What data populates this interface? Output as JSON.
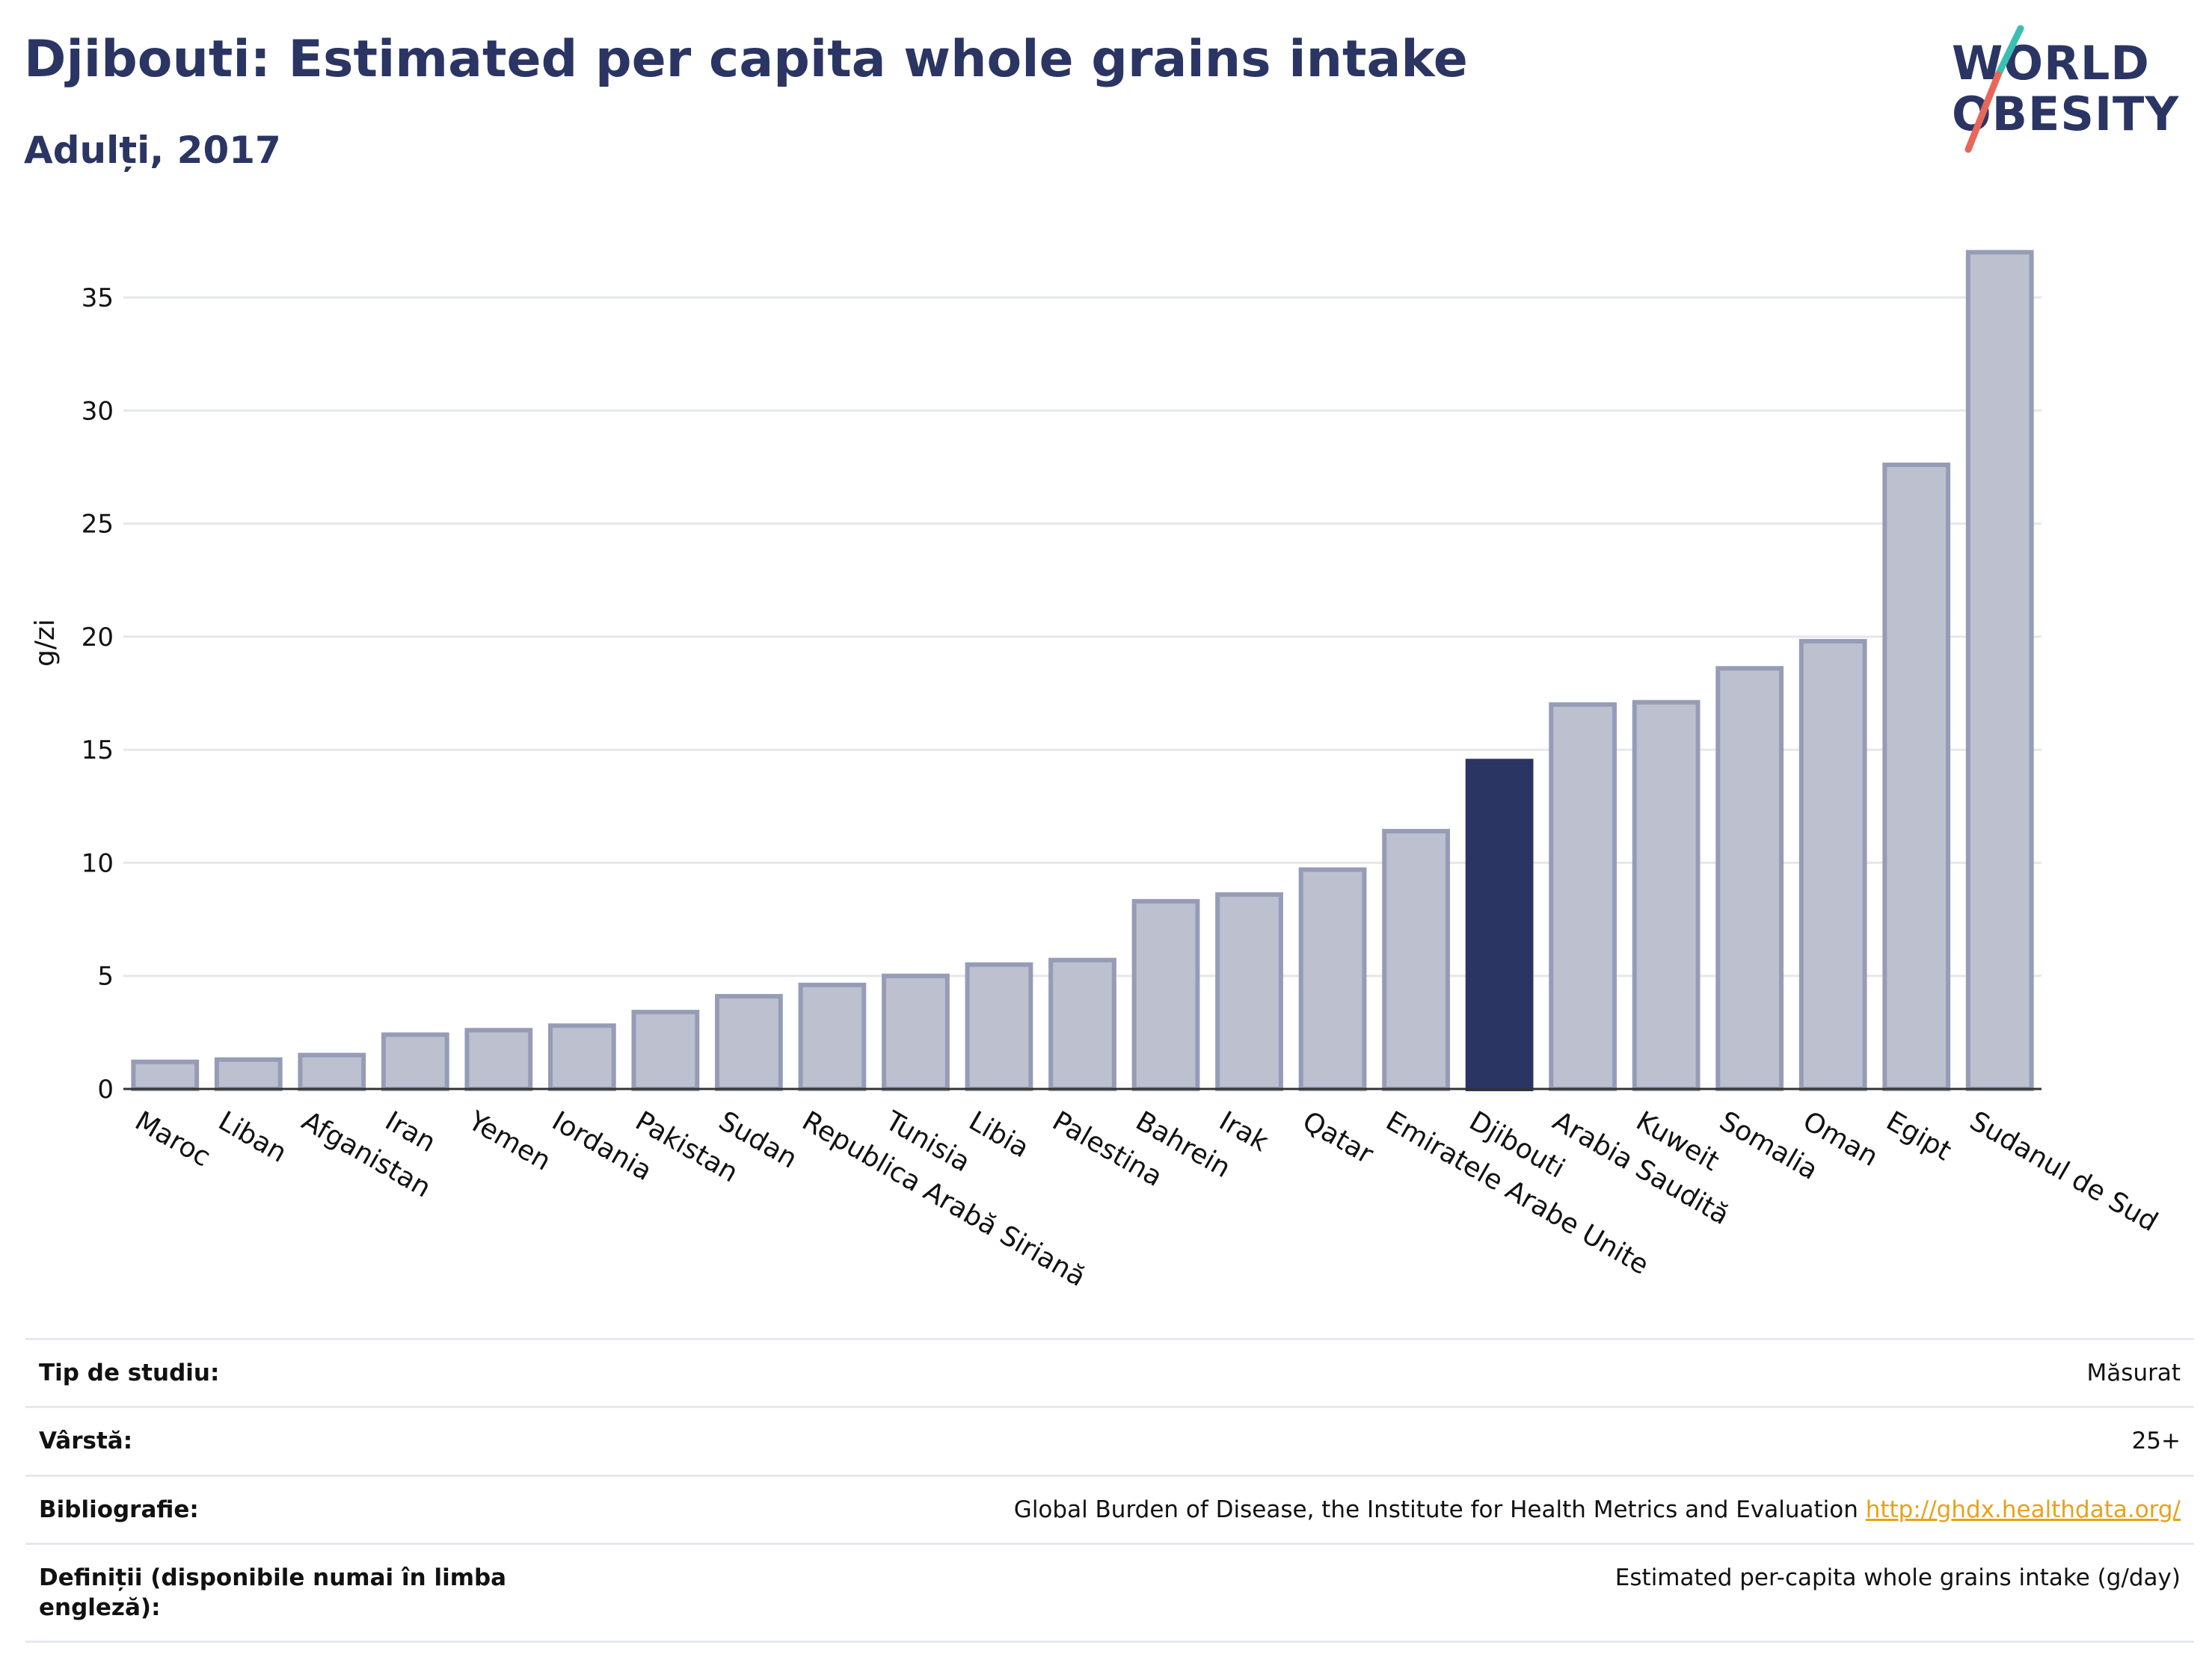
{
  "header": {
    "title": "Djibouti: Estimated per capita whole grains intake",
    "subtitle": "Adulți, 2017"
  },
  "logo": {
    "line1": "WORLD",
    "line2": "OBESITY",
    "colors": {
      "text": "#2b3563",
      "slash_top": "#3cbfb3",
      "slash_bottom": "#e8665a"
    }
  },
  "chart_data": {
    "type": "bar",
    "ylabel": "g/zi",
    "ylim": [
      0,
      38
    ],
    "yticks": [
      0,
      5,
      10,
      15,
      20,
      25,
      30,
      35
    ],
    "grid": true,
    "highlight": "Djibouti",
    "colors": {
      "bar": "#bcc0cf",
      "bar_border": "#969cb6",
      "highlight": "#2b3563",
      "grid": "#e6e7ec"
    },
    "categories": [
      "Maroc",
      "Liban",
      "Afganistan",
      "Iran",
      "Yemen",
      "Iordania",
      "Pakistan",
      "Sudan",
      "Republica Arabă Siriană",
      "Tunisia",
      "Libia",
      "Palestina",
      "Bahrein",
      "Irak",
      "Qatar",
      "Emiratele Arabe Unite",
      "Djibouti",
      "Arabia Saudită",
      "Kuweit",
      "Somalia",
      "Oman",
      "Egipt",
      "Sudanul de Sud"
    ],
    "values": [
      1.2,
      1.3,
      1.5,
      2.4,
      2.6,
      2.8,
      3.4,
      4.1,
      4.6,
      5.0,
      5.5,
      5.7,
      8.3,
      8.6,
      9.7,
      11.4,
      14.5,
      17.0,
      17.1,
      18.6,
      19.8,
      27.6,
      37.0
    ]
  },
  "info": {
    "rows": [
      {
        "key": "Tip de studiu:",
        "value": "Măsurat"
      },
      {
        "key": "Vârstă:",
        "value": "25+"
      },
      {
        "key": "Bibliografie:",
        "value": "Global Burden of Disease, the Institute for Health Metrics and Evaluation",
        "link": "http://ghdx.healthdata.org/"
      },
      {
        "key": "Definiții (disponibile numai în limba engleză):",
        "value": "Estimated per-capita whole grains intake (g/day)"
      }
    ]
  }
}
